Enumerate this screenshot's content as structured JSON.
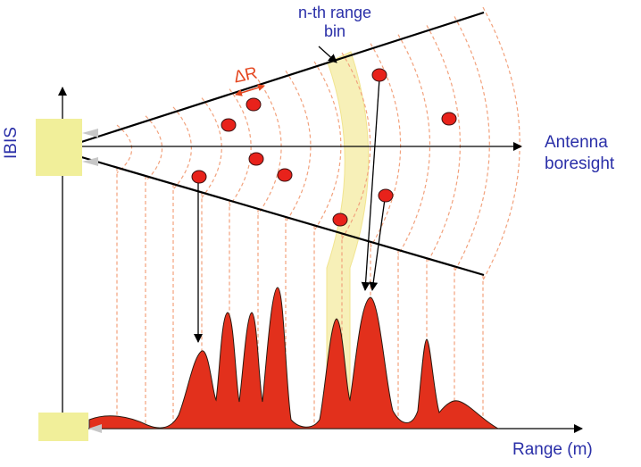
{
  "labels": {
    "nth_range_bin": "n-th range bin",
    "antenna_boresight": "Antenna boresight",
    "range_axis": "Range (m)",
    "delta_r": "ΔR",
    "ibis": "IBIS"
  },
  "colors": {
    "label_blue": "#2a2fa8",
    "range_lines": "#f2a27d",
    "bin_highlight": "#f7f0b8",
    "antenna_box": "#f1ef9a",
    "target_fill": "#e8221b",
    "signal_fill": "#e2301c",
    "delta_arrow": "#e4461f"
  },
  "icons": [
    "antenna-box-icon",
    "target-icon",
    "arrow-icon"
  ]
}
